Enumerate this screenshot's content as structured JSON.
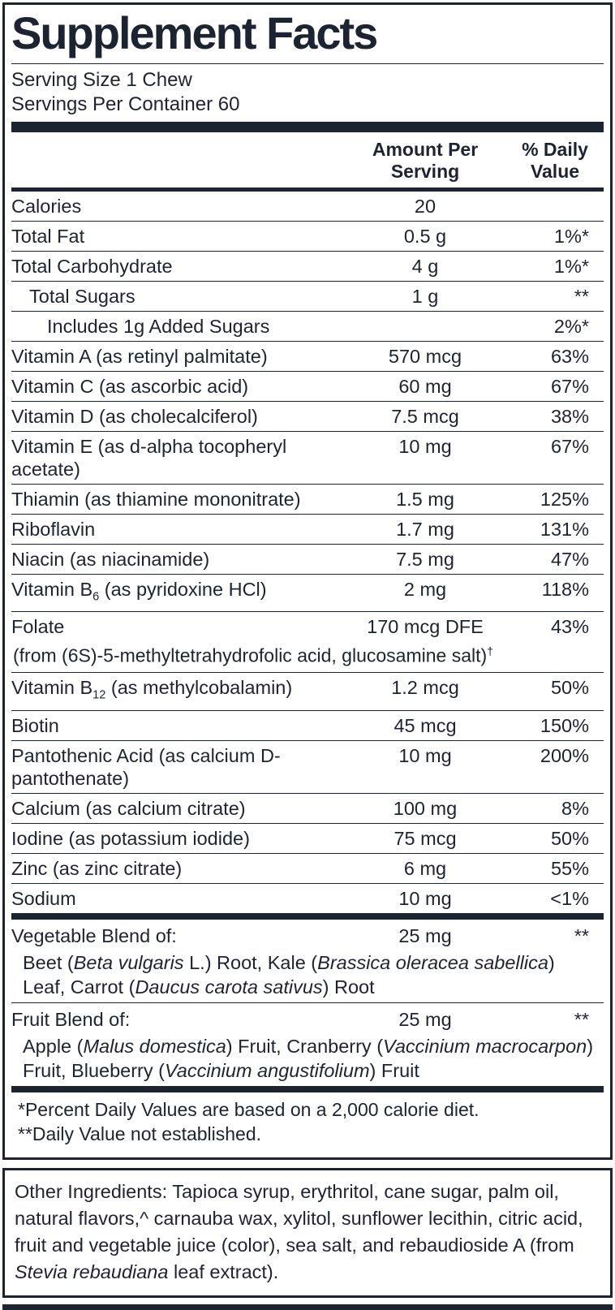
{
  "label": {
    "title": "Supplement Facts",
    "serving_size": "Serving Size 1 Chew",
    "servings_per_container": "Servings Per Container 60",
    "columns": {
      "amount": "Amount Per Serving",
      "daily_value": "% Daily Value"
    },
    "rows": [
      {
        "name": "Calories",
        "amount": "20",
        "dv": "",
        "indent": 0
      },
      {
        "name": "Total Fat",
        "amount": "0.5 g",
        "dv": "1%*",
        "indent": 0
      },
      {
        "name": "Total Carbohydrate",
        "amount": "4 g",
        "dv": "1%*",
        "indent": 0
      },
      {
        "name": "Total Sugars",
        "amount": "1 g",
        "dv": "**",
        "indent": 1
      },
      {
        "name": "Includes 1g Added Sugars",
        "amount": "",
        "dv": "2%*",
        "indent": 2
      },
      {
        "name": "Vitamin A (as retinyl palmitate)",
        "amount": "570 mcg",
        "dv": "63%",
        "indent": 0
      },
      {
        "name": "Vitamin C (as ascorbic acid)",
        "amount": "60 mg",
        "dv": "67%",
        "indent": 0
      },
      {
        "name": "Vitamin D (as cholecalciferol)",
        "amount": "7.5 mcg",
        "dv": "38%",
        "indent": 0
      },
      {
        "name": "Vitamin E (as d-alpha tocopheryl acetate)",
        "amount": "10 mg",
        "dv": "67%",
        "indent": 0
      },
      {
        "name": "Thiamin (as thiamine mononitrate)",
        "amount": "1.5 mg",
        "dv": "125%",
        "indent": 0
      },
      {
        "name": "Riboflavin",
        "amount": "1.7 mg",
        "dv": "131%",
        "indent": 0
      },
      {
        "name": "Niacin (as niacinamide)",
        "amount": "7.5 mg",
        "dv": "47%",
        "indent": 0
      },
      {
        "name": [
          {
            "t": "Vitamin B"
          },
          {
            "t": "6",
            "sub": true
          },
          {
            "t": " (as pyridoxine HCl)"
          }
        ],
        "amount": "2 mg",
        "dv": "118%",
        "indent": 0
      },
      {
        "name": "Folate",
        "amount": "170 mcg DFE",
        "dv": "43%",
        "indent": 0,
        "sub": [
          {
            "t": "(from (6S)-5-methyltetrahydrofolic acid, glucosamine salt)"
          },
          {
            "t": "†",
            "sup": true
          }
        ]
      },
      {
        "name": [
          {
            "t": "Vitamin B"
          },
          {
            "t": "12",
            "sub": true
          },
          {
            "t": " (as methylcobalamin)"
          }
        ],
        "amount": "1.2 mcg",
        "dv": "50%",
        "indent": 0
      },
      {
        "name": "Biotin",
        "amount": "45 mcg",
        "dv": "150%",
        "indent": 0
      },
      {
        "name": "Pantothenic Acid (as calcium D-pantothenate)",
        "amount": "10 mg",
        "dv": "200%",
        "indent": 0
      },
      {
        "name": "Calcium (as calcium citrate)",
        "amount": "100 mg",
        "dv": "8%",
        "indent": 0
      },
      {
        "name": "Iodine (as potassium iodide)",
        "amount": "75 mcg",
        "dv": "50%",
        "indent": 0
      },
      {
        "name": "Zinc (as zinc citrate)",
        "amount": "6 mg",
        "dv": "55%",
        "indent": 0
      },
      {
        "name": "Sodium",
        "amount": "10 mg",
        "dv": "<1%",
        "indent": 0
      }
    ],
    "blends": [
      {
        "name": "Vegetable Blend of:",
        "amount": "25 mg",
        "dv": "**",
        "detail": [
          {
            "t": "Beet ("
          },
          {
            "t": "Beta vulgaris",
            "i": true
          },
          {
            "t": " L.) Root, Kale ("
          },
          {
            "t": "Brassica oleracea sabellica",
            "i": true
          },
          {
            "t": ") Leaf, Carrot ("
          },
          {
            "t": "Daucus carota sativus",
            "i": true
          },
          {
            "t": ") Root"
          }
        ]
      },
      {
        "name": "Fruit Blend of:",
        "amount": "25 mg",
        "dv": "**",
        "detail": [
          {
            "t": "Apple ("
          },
          {
            "t": "Malus domestica",
            "i": true
          },
          {
            "t": ") Fruit, Cranberry ("
          },
          {
            "t": "Vaccinium macrocarpon",
            "i": true
          },
          {
            "t": ") Fruit, Blueberry ("
          },
          {
            "t": "Vaccinium angustifolium",
            "i": true
          },
          {
            "t": ") Fruit"
          }
        ]
      }
    ],
    "footnotes": [
      "*Percent Daily Values are based on a 2,000 calorie diet.",
      "**Daily Value not established."
    ],
    "other_ingredients": [
      {
        "t": "Other Ingredients: Tapioca syrup, erythritol, cane sugar, palm oil, natural flavors,^ carnauba wax, xylitol, sunflower lecithin, citric acid, fruit and vegetable juice (color), sea salt, and rebaudioside A (from "
      },
      {
        "t": "Stevia rebaudiana",
        "i": true
      },
      {
        "t": " leaf extract)."
      }
    ]
  }
}
